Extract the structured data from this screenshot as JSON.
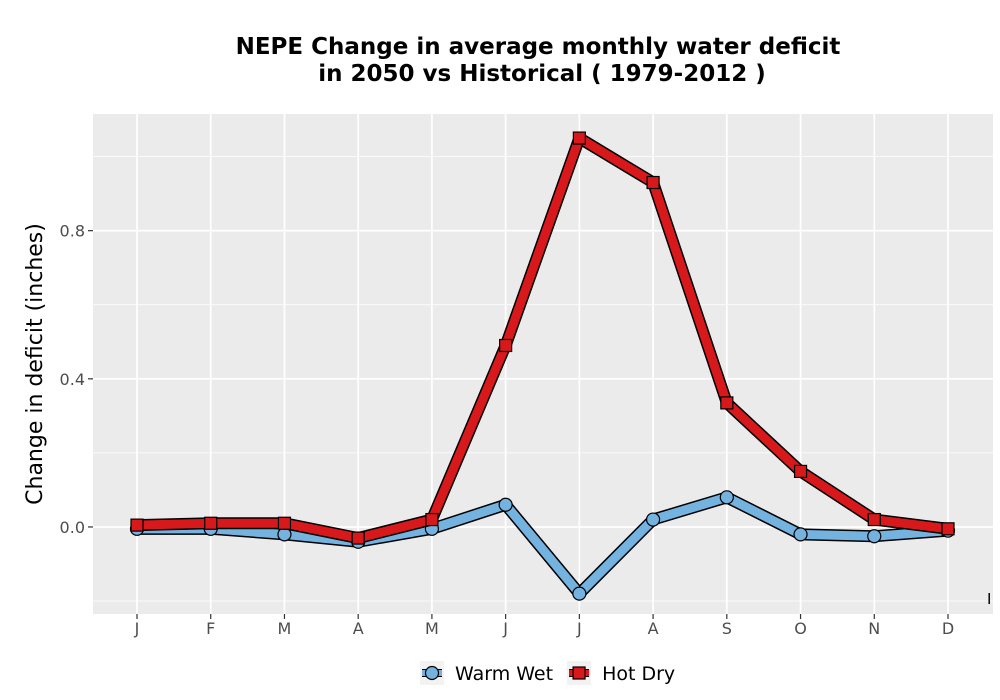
{
  "chart_data": {
    "type": "line",
    "title_line1": "NEPE  Change in average monthly water deficit",
    "title_line2": "in 2050 vs Historical ( 1979-2012 )",
    "xlabel": "",
    "ylabel": "Change in deficit (inches)",
    "categories": [
      "J",
      "F",
      "M",
      "A",
      "M",
      "J",
      "J",
      "A",
      "S",
      "O",
      "N",
      "D"
    ],
    "y_ticks": [
      0.0,
      0.4,
      0.8
    ],
    "y_tick_labels": [
      "0.0",
      "0.4",
      "0.8"
    ],
    "ylim": [
      -0.235,
      1.115
    ],
    "grid": true,
    "legend_position": "bottom",
    "series": [
      {
        "name": "Warm Wet",
        "color": "#74b3e0",
        "marker": "circle",
        "values": [
          -0.005,
          -0.005,
          -0.02,
          -0.04,
          -0.005,
          0.06,
          -0.18,
          0.02,
          0.08,
          -0.02,
          -0.025,
          -0.01
        ]
      },
      {
        "name": "Hot Dry",
        "color": "#d7191c",
        "marker": "square",
        "values": [
          0.005,
          0.01,
          0.01,
          -0.03,
          0.02,
          0.49,
          1.05,
          0.93,
          0.335,
          0.15,
          0.02,
          -0.005
        ]
      }
    ],
    "annotation": "I"
  }
}
